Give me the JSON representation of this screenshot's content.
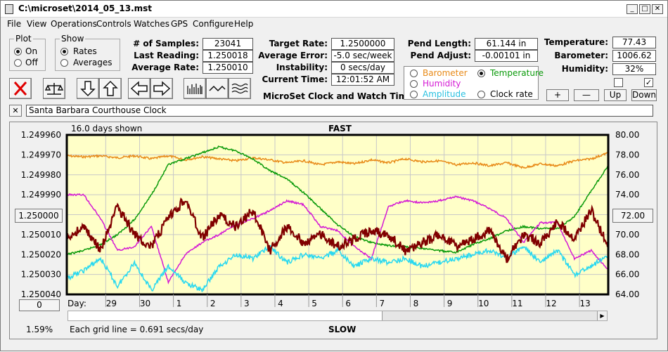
{
  "window": {
    "title": "C:\\microset\\2014_05_13.mst"
  },
  "menu": [
    "File",
    "View",
    "Operations",
    "Controls",
    "Watches",
    "GPS",
    "Configure",
    "Help"
  ],
  "plot_group": {
    "legend": "Plot",
    "on": "On",
    "off": "Off",
    "selected": "On"
  },
  "show_group": {
    "legend": "Show",
    "rates": "Rates",
    "averages": "Averages",
    "selected": "Rates"
  },
  "stats": {
    "samples_label": "# of Samples:",
    "samples": "23041",
    "last_label": "Last Reading:",
    "last": "1.250018",
    "avg_label": "Average Rate:",
    "avg": "1.250010"
  },
  "target": {
    "rate_label": "Target Rate:",
    "rate": "1.2500000",
    "err_label": "Average Error:",
    "err": "-5.0 sec/week",
    "inst_label": "Instability:",
    "inst": "0 secs/day",
    "time_label": "Current Time:",
    "time": "12:01:52 AM"
  },
  "pend": {
    "len_label": "Pend Length:",
    "len": "61.144 in",
    "adj_label": "Pend Adjust:",
    "adj": "-0.00101 in"
  },
  "env": {
    "temp_label": "Temperature:",
    "temp": "77.43",
    "baro_label": "Barometer:",
    "baro": "1006.62",
    "hum_label": "Humidity:",
    "hum": "32%"
  },
  "sensors": {
    "barometer": "Barometer",
    "temperature": "Temperature",
    "humidity": "Humidity",
    "amplitude": "Amplitude",
    "clock_rate": "Clock rate",
    "selected": "Temperature"
  },
  "app_caption": "MicroSet Clock and Watch Timer",
  "small_buttons": {
    "plus": "+",
    "minus": "—",
    "up": "Up",
    "down": "Down"
  },
  "clock_name": "Santa Barbara Courthouse Clock",
  "close_x": "✕",
  "icons": [
    "stop-x-icon",
    "balance-scale-icon",
    "arrow-down-icon",
    "arrow-up-icon",
    "arrow-left-icon",
    "arrow-right-icon",
    "bar-graph-icon",
    "wave-icon",
    "multi-wave-icon"
  ],
  "colors": {
    "rate": "#800000",
    "temperature": "#0a9a0a",
    "barometer": "#e88a18",
    "humidity": "#d418d4",
    "amplitude": "#28d8f0",
    "plot_bg": "#ffffc8"
  },
  "plot": {
    "days_shown": "16.0 days shown",
    "fast": "FAST",
    "slow": "SLOW",
    "grid_note": "Each grid line = 0.691 secs/day",
    "percent": "1.59%",
    "day_label": "Day:",
    "left_center": "1.250000",
    "right_center": "72.00",
    "left_bottom_btn": "0"
  },
  "chart_data": {
    "type": "line",
    "x_label": "Day:",
    "x_ticks": [
      "29",
      "30",
      "1",
      "2",
      "3",
      "4",
      "5",
      "6",
      "7",
      "8",
      "9",
      "10",
      "11",
      "12",
      "13"
    ],
    "y_left_ticks": [
      "1.249960",
      "1.249970",
      "1.249980",
      "1.249990",
      "1.250000",
      "1.250010",
      "1.250020",
      "1.250030",
      "1.250040"
    ],
    "y_right_ticks": [
      "80.00",
      "78.00",
      "76.00",
      "74.00",
      "72.00",
      "70.00",
      "68.00",
      "66.00",
      "64.00"
    ],
    "y_left_range": [
      1.24996,
      1.25004
    ],
    "y_right_range": [
      64,
      80
    ],
    "grid": true,
    "x_range": [
      0,
      16
    ],
    "series": [
      {
        "key": "barometer",
        "y": "right",
        "x": [
          0,
          0.5,
          1,
          1.5,
          2,
          2.5,
          3,
          3.5,
          4,
          4.5,
          5,
          5.5,
          6,
          6.5,
          7,
          7.5,
          8,
          8.5,
          9,
          9.5,
          10,
          10.5,
          11,
          11.5,
          12,
          12.5,
          13,
          13.5,
          14,
          14.5,
          15,
          15.5,
          16
        ],
        "values": [
          77.9,
          77.8,
          77.9,
          77.7,
          77.9,
          77.6,
          77.9,
          77.5,
          77.8,
          77.6,
          77.4,
          77.7,
          77.5,
          77.2,
          77.4,
          77.0,
          77.3,
          77.1,
          77.5,
          77.2,
          77.6,
          77.3,
          77.4,
          77.0,
          77.2,
          76.9,
          77.2,
          76.7,
          77.1,
          76.9,
          77.4,
          77.6,
          78.2
        ]
      },
      {
        "key": "temperature",
        "y": "right",
        "x": [
          0,
          0.5,
          1,
          1.5,
          2,
          2.5,
          3,
          3.5,
          4,
          4.5,
          5,
          5.5,
          6,
          6.5,
          7,
          7.5,
          8,
          8.5,
          9,
          9.5,
          10,
          10.5,
          11,
          11.5,
          12,
          12.5,
          13,
          13.5,
          14,
          14.5,
          15,
          15.5,
          16
        ],
        "values": [
          68.0,
          68.4,
          69.0,
          70.0,
          71.5,
          74.0,
          77.0,
          77.6,
          78.2,
          78.8,
          78.4,
          77.6,
          76.4,
          75.6,
          74.2,
          72.6,
          71.0,
          69.8,
          69.2,
          68.9,
          68.8,
          68.6,
          68.4,
          68.2,
          69.0,
          69.6,
          70.4,
          70.8,
          70.6,
          70.6,
          71.8,
          74.4,
          76.9
        ]
      },
      {
        "key": "humidity",
        "y": "left",
        "x": [
          0,
          0.5,
          1,
          1.5,
          2,
          2.5,
          3,
          3.5,
          4,
          4.5,
          5,
          5.5,
          6,
          6.5,
          7,
          7.5,
          8,
          8.5,
          9,
          9.5,
          10,
          10.5,
          11,
          11.5,
          12,
          12.5,
          13,
          13.5,
          14,
          14.5,
          15,
          15.5,
          16
        ],
        "values": [
          1.24999,
          1.24999,
          1.250002,
          1.250018,
          1.250016,
          1.250006,
          1.250034,
          1.25002,
          1.250014,
          1.25001,
          1.250005,
          1.250002,
          1.249998,
          1.249993,
          1.249995,
          1.250006,
          1.250008,
          1.250016,
          1.250022,
          1.249996,
          1.249993,
          1.249994,
          1.249993,
          1.249991,
          1.249993,
          1.249997,
          1.250002,
          1.250014,
          1.250004,
          1.250004,
          1.250022,
          1.250018,
          1.250028
        ]
      },
      {
        "key": "amplitude",
        "y": "left",
        "x": [
          0,
          0.5,
          1,
          1.5,
          2,
          2.5,
          3,
          3.5,
          4,
          4.5,
          5,
          5.5,
          6,
          6.5,
          7,
          7.5,
          8,
          8.5,
          9,
          9.5,
          10,
          10.5,
          11,
          11.5,
          12,
          12.5,
          13,
          13.5,
          14,
          14.5,
          15,
          15.5,
          16
        ],
        "values": [
          1.250032,
          1.250028,
          1.250022,
          1.250036,
          1.250024,
          1.250038,
          1.250026,
          1.250034,
          1.250038,
          1.250026,
          1.25002,
          1.250022,
          1.250016,
          1.250024,
          1.25002,
          1.250022,
          1.250018,
          1.250026,
          1.250022,
          1.250024,
          1.250022,
          1.250026,
          1.250024,
          1.250022,
          1.25002,
          1.250018,
          1.250022,
          1.250016,
          1.250024,
          1.250018,
          1.25003,
          1.250026,
          1.25002
        ]
      },
      {
        "key": "rate",
        "y": "left",
        "x": [
          0,
          0.5,
          1,
          1.5,
          2,
          2.5,
          3,
          3.5,
          4,
          4.5,
          5,
          5.5,
          6,
          6.5,
          7,
          7.5,
          8,
          8.5,
          9,
          9.5,
          10,
          10.5,
          11,
          11.5,
          12,
          12.5,
          13,
          13.5,
          14,
          14.5,
          15,
          15.5,
          16
        ],
        "values": [
          1.250012,
          1.250006,
          1.250018,
          1.249996,
          1.25001,
          1.250016,
          1.250002,
          1.249992,
          1.250012,
          1.25,
          1.250006,
          1.249998,
          1.250018,
          1.250006,
          1.250014,
          1.25001,
          1.250016,
          1.250012,
          1.250008,
          1.25001,
          1.250018,
          1.250014,
          1.25001,
          1.250016,
          1.250012,
          1.250008,
          1.250022,
          1.25001,
          1.250014,
          1.250004,
          1.250012,
          1.249998,
          1.250016
        ]
      }
    ]
  }
}
